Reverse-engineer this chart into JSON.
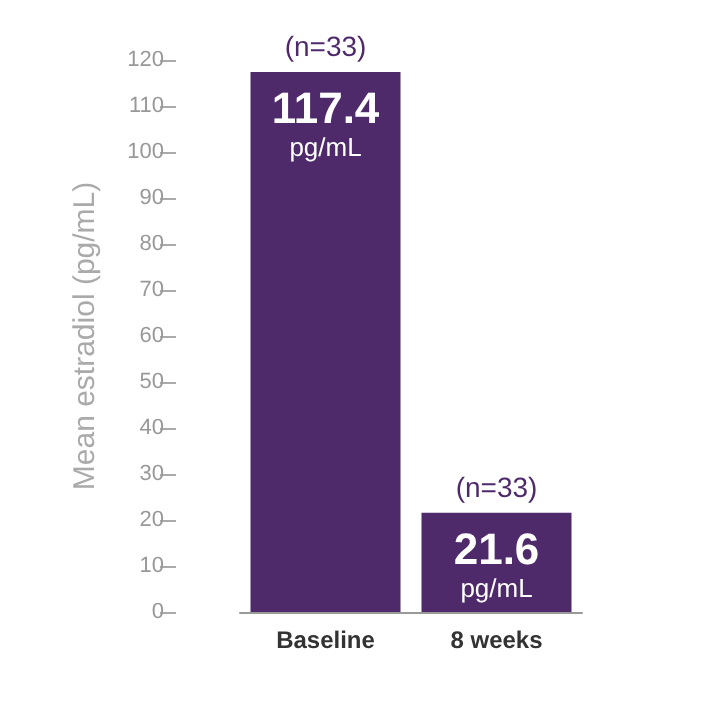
{
  "chart_data": {
    "type": "bar",
    "ylabel": "Mean estradiol (pg/mL)",
    "categories": [
      "Baseline",
      "8 weeks"
    ],
    "values": [
      117.4,
      21.6
    ],
    "color": "#4f2a6b",
    "value_labels": [
      "117.4 pg/mL",
      "21.6 pg/mL"
    ],
    "ylim": [
      0,
      120
    ],
    "yticks": [
      0,
      10,
      20,
      30,
      40,
      50,
      60,
      70,
      80,
      90,
      100,
      110,
      120
    ],
    "grid": false,
    "annotations": [
      {
        "text": "(n=33)",
        "x": "Baseline",
        "y": 117.4
      },
      {
        "text": "(n=33)",
        "x": "8 weeks",
        "y": 21.6
      }
    ]
  }
}
